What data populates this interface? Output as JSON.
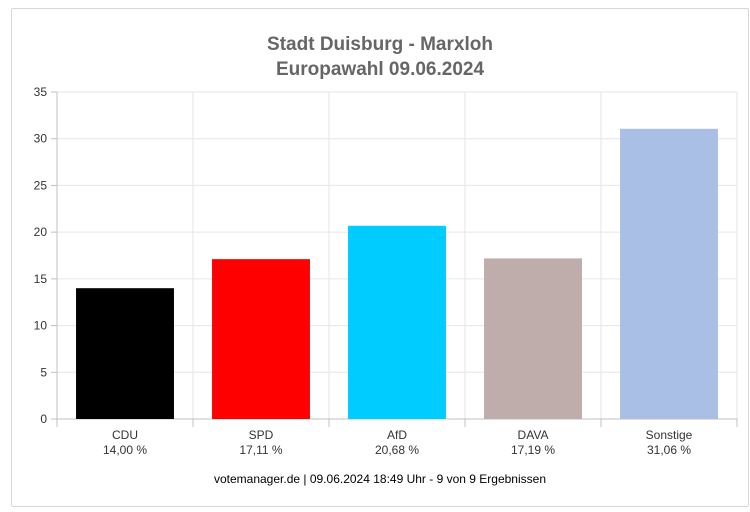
{
  "chart_data": {
    "type": "bar",
    "title": "Stadt Duisburg - Marxloh",
    "subtitle": "Europawahl 09.06.2024",
    "categories": [
      "CDU",
      "SPD",
      "AfD",
      "DAVA",
      "Sonstige"
    ],
    "value_labels": [
      "14,00 %",
      "17,11 %",
      "20,68 %",
      "17,19 %",
      "31,06 %"
    ],
    "values": [
      14.0,
      17.11,
      20.68,
      17.19,
      31.06
    ],
    "colors": [
      "#000000",
      "#ff0000",
      "#00ccff",
      "#bfadab",
      "#aabfe6"
    ],
    "ylim": [
      0,
      35
    ],
    "yticks": [
      0,
      5,
      10,
      15,
      20,
      25,
      30,
      35
    ],
    "grid": true,
    "xlabel": "",
    "ylabel": ""
  },
  "footer": "votemanager.de | 09.06.2024 18:49 Uhr - 9 von 9 Ergebnissen"
}
